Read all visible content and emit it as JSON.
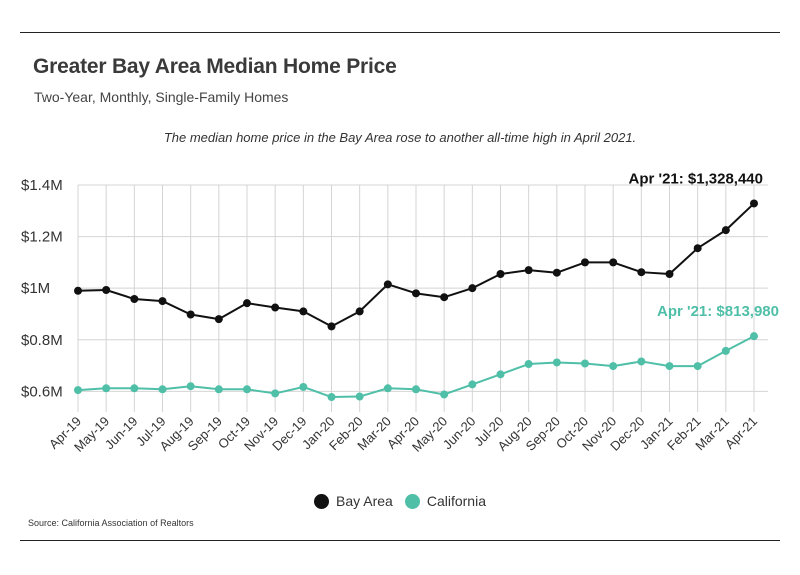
{
  "header": {
    "title": "Greater Bay Area Median Home Price",
    "subtitle": "Two-Year, Monthly, Single-Family Homes",
    "annotation": "The median home price in the Bay Area rose to another all-time high in April 2021."
  },
  "source": "Source:  California Association of Realtors",
  "colors": {
    "bay_area": "#111111",
    "california": "#4fbfa8",
    "grid": "#d4d4d4"
  },
  "chart_data": {
    "type": "line",
    "categories": [
      "Apr-19",
      "May-19",
      "Jun-19",
      "Jul-19",
      "Aug-19",
      "Sep-19",
      "Oct-19",
      "Nov-19",
      "Dec-19",
      "Jan-20",
      "Feb-20",
      "Mar-20",
      "Apr-20",
      "May-20",
      "Jun-20",
      "Jul-20",
      "Aug-20",
      "Sep-20",
      "Oct-20",
      "Nov-20",
      "Dec-20",
      "Jan-21",
      "Feb-21",
      "Mar-21",
      "Apr-21"
    ],
    "series": [
      {
        "name": "Bay Area",
        "color": "#111111",
        "values": [
          990000,
          993000,
          958000,
          950000,
          898000,
          880000,
          942000,
          925000,
          910000,
          852000,
          910000,
          1015000,
          980000,
          965000,
          1000000,
          1055000,
          1070000,
          1060000,
          1100000,
          1100000,
          1062000,
          1055000,
          1155000,
          1225000,
          1328440
        ],
        "end_label": "Apr '21: $1,328,440"
      },
      {
        "name": "California",
        "color": "#4fbfa8",
        "values": [
          605000,
          612000,
          612000,
          608000,
          620000,
          608000,
          608000,
          592000,
          617000,
          578000,
          580000,
          612000,
          608000,
          588000,
          627000,
          666000,
          706000,
          712000,
          708000,
          698000,
          716000,
          698000,
          698000,
          757000,
          813980
        ],
        "end_label": "Apr '21: $813,980"
      }
    ],
    "y_ticks": [
      {
        "value": 600000,
        "label": "$0.6M"
      },
      {
        "value": 800000,
        "label": "$0.8M"
      },
      {
        "value": 1000000,
        "label": "$1M"
      },
      {
        "value": 1200000,
        "label": "$1.2M"
      },
      {
        "value": 1400000,
        "label": "$1.4M"
      }
    ],
    "ylim": [
      520000,
      1400000
    ],
    "xlabel": "",
    "ylabel": "",
    "grid": true,
    "legend": "bottom-center"
  }
}
